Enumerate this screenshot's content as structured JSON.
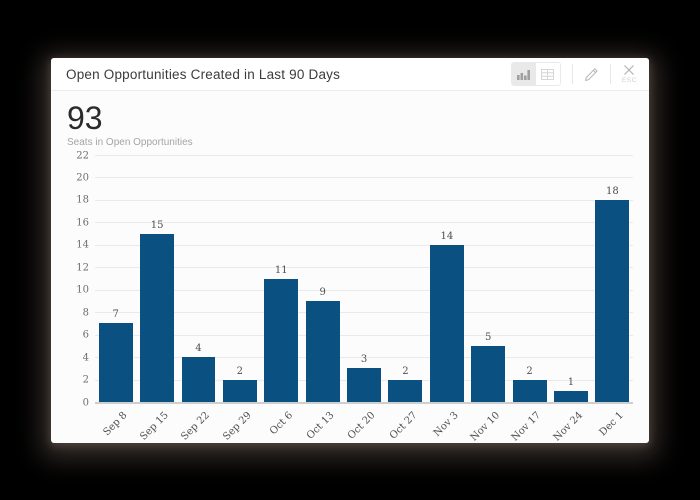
{
  "header": {
    "title": "Open Opportunities Created in Last 90 Days",
    "esc_label": "ESC"
  },
  "summary": {
    "value": "93",
    "label": "Seats in Open Opportunities"
  },
  "chart_data": {
    "type": "bar",
    "title": "Open Opportunities Created in Last 90 Days",
    "categories": [
      "Sep 8",
      "Sep 15",
      "Sep 22",
      "Sep 29",
      "Oct 6",
      "Oct 13",
      "Oct 20",
      "Oct 27",
      "Nov 3",
      "Nov 10",
      "Nov 17",
      "Nov 24",
      "Dec 1"
    ],
    "values": [
      7,
      15,
      4,
      2,
      11,
      9,
      3,
      2,
      14,
      5,
      2,
      1,
      18
    ],
    "xlabel": "",
    "ylabel": "",
    "ylim": [
      0,
      22
    ],
    "y_ticks": [
      0,
      2,
      4,
      6,
      8,
      10,
      12,
      14,
      16,
      18,
      20,
      22
    ],
    "grid": true,
    "legend": false,
    "value_labels": true,
    "x_tick_rotation": -45,
    "bar_color": "#0a5182"
  },
  "colors": {
    "bar": "#0a5182",
    "page_background": "#000000",
    "card_background": "#fcfcfc",
    "header_background": "#ffffff",
    "gridline": "#eaeaea",
    "axis_line": "#cfcfcf"
  }
}
